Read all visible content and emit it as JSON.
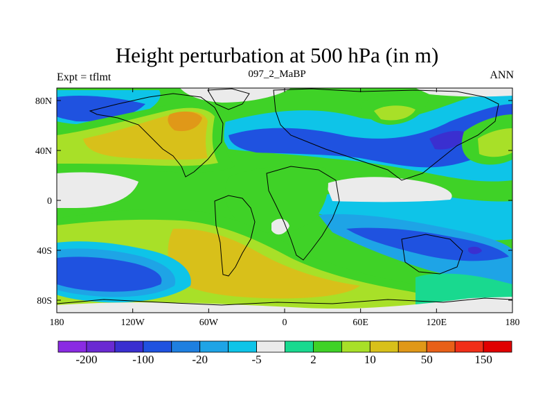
{
  "header": {
    "title": "Height perturbation at 500 hPa (in m)",
    "left": "Expt = tflmt",
    "center": "097_2_MaBP",
    "right": "ANN"
  },
  "axes": {
    "lat_ticks": [
      "80N",
      "40N",
      "0",
      "40S",
      "80S"
    ],
    "lon_ticks": [
      "180",
      "120W",
      "60W",
      "0",
      "60E",
      "120E",
      "180"
    ]
  },
  "colorbar": {
    "colors": [
      "#8a2be2",
      "#6a2ad2",
      "#3a2fd0",
      "#1f52e0",
      "#1e7fe0",
      "#1ea4e6",
      "#0ec4e8",
      "#ebebeb",
      "#19d98f",
      "#3fd227",
      "#a8e028",
      "#d8c01a",
      "#e09818",
      "#e86018",
      "#f02f18",
      "#e00000"
    ],
    "labels": [
      "-200",
      "-100",
      "-20",
      "-5",
      "2",
      "10",
      "50",
      "150"
    ]
  },
  "palette": {
    "neutral": "#ebebeb",
    "neg_light": "#0ec4e8",
    "neg_mid": "#1ea4e6",
    "neg_strong": "#1f52e0",
    "neg_very": "#3a2fd0",
    "pos_green1": "#19d98f",
    "pos_green2": "#3fd227",
    "pos_lime": "#a8e028",
    "pos_olive": "#d8c01a",
    "pos_orange": "#e09818"
  }
}
